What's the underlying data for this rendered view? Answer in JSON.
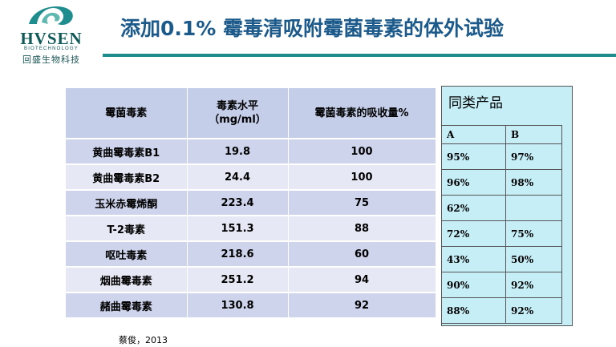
{
  "header": {
    "logo": {
      "brand": "HVSEN",
      "subtitle": "BIOTECHNOLOGY",
      "chinese_name": "回盛生物科技",
      "colors": {
        "mark": "#1f8c8e"
      }
    },
    "title": "添加0.1% 霉毒清吸附霉菌毒素的体外试验",
    "colors": {
      "title": "#1b5a8a",
      "rule": "#1f8c8e"
    }
  },
  "main_table": {
    "headers": [
      "霉菌毒素",
      "毒素水平\n（mg/ml）",
      "霉菌毒素的吸收量%"
    ],
    "rows": [
      [
        "黄曲霉毒素B1",
        "19.8",
        "100"
      ],
      [
        "黄曲霉毒素B2",
        "24.4",
        "100"
      ],
      [
        "玉米赤霉烯酮",
        "223.4",
        "75"
      ],
      [
        "T-2毒素",
        "151.3",
        "88"
      ],
      [
        "呕吐毒素",
        "218.6",
        "60"
      ],
      [
        "烟曲霉毒素",
        "251.2",
        "94"
      ],
      [
        "赭曲霉毒素",
        "130.8",
        "92"
      ]
    ]
  },
  "citation": "蔡俊，2013",
  "comparison": {
    "title": "同类产品",
    "headers": [
      "A",
      "B"
    ],
    "rows": [
      [
        "95%",
        "97%"
      ],
      [
        "96%",
        "98%"
      ],
      [
        "62%",
        ""
      ],
      [
        "72%",
        "75%"
      ],
      [
        "43%",
        "50%"
      ],
      [
        "90%",
        "92%"
      ],
      [
        "88%",
        "92%"
      ]
    ],
    "colors": {
      "background": "#c6eef7"
    }
  }
}
